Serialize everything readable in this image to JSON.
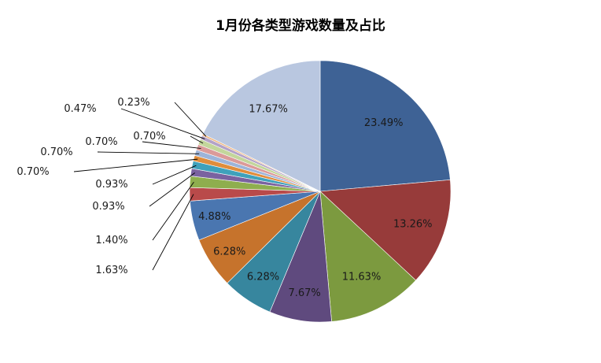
{
  "chart_data": {
    "type": "pie",
    "title": "1月份各类型游戏数量及占比",
    "legend": "none",
    "labels": [
      "23.49%",
      "13.26%",
      "11.63%",
      "7.67%",
      "6.28%",
      "6.28%",
      "4.88%",
      "1.63%",
      "1.40%",
      "0.93%",
      "0.93%",
      "0.70%",
      "0.70%",
      "0.70%",
      "0.70%",
      "0.47%",
      "0.23%",
      "17.67%"
    ],
    "values": [
      23.49,
      13.26,
      11.63,
      7.67,
      6.28,
      6.28,
      4.88,
      1.63,
      1.4,
      0.93,
      0.93,
      0.7,
      0.7,
      0.7,
      0.7,
      0.47,
      0.23,
      17.67
    ],
    "colors": [
      "#3E6295",
      "#973B3A",
      "#7C9A3F",
      "#5F4A7E",
      "#37869E",
      "#C6732C",
      "#4A76B0",
      "#B94A4A",
      "#8EAE4E",
      "#7A62A0",
      "#3FA1BB",
      "#E08D3C",
      "#9DB4D9",
      "#DB9A99",
      "#C3D69B",
      "#B3A2C7",
      "#F0B67F",
      "#B9C7E0"
    ],
    "start_angle_deg": 90,
    "direction": "clockwise",
    "label_mode": [
      "inside",
      "inside",
      "inside",
      "inside",
      "inside",
      "inside",
      "inside",
      "outside",
      "outside",
      "outside",
      "outside",
      "outside",
      "outside",
      "outside",
      "outside",
      "outside",
      "outside",
      "inside"
    ]
  }
}
